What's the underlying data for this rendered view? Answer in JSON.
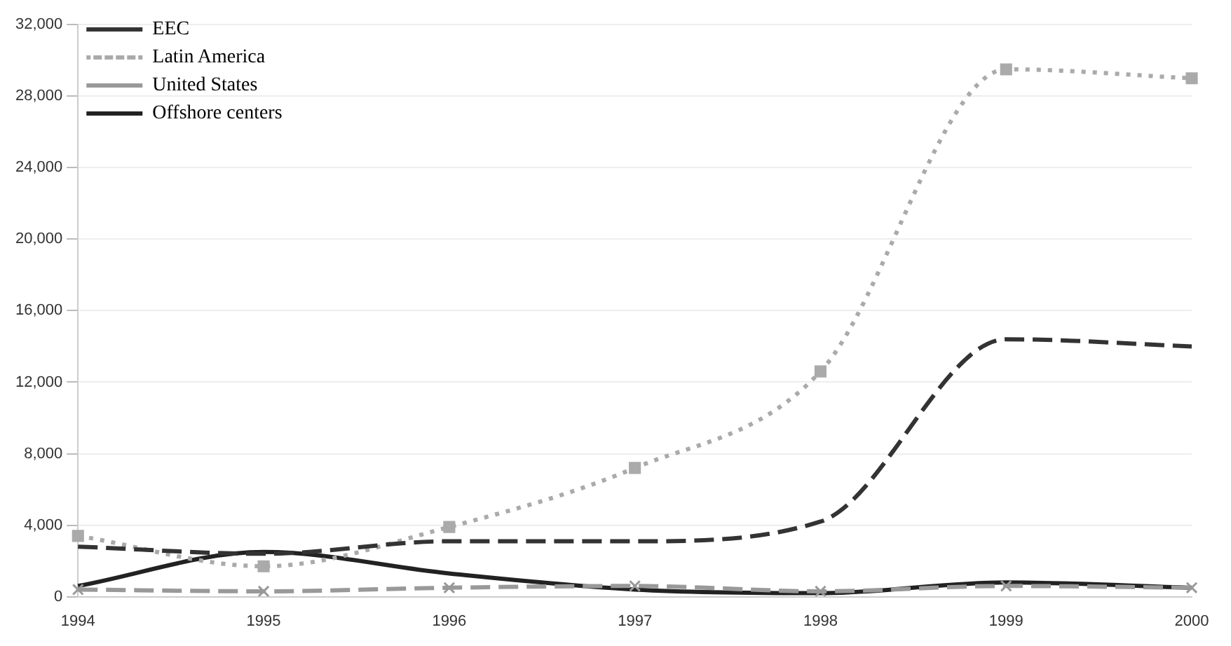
{
  "chart_data": {
    "type": "line",
    "categories": [
      "1994",
      "1995",
      "1996",
      "1997",
      "1998",
      "1999",
      "2000"
    ],
    "series": [
      {
        "name": "EEC",
        "color": "#333333",
        "line_style": "dashed",
        "marker": "none",
        "values": [
          2800,
          2400,
          3100,
          3100,
          4200,
          14400,
          14000
        ]
      },
      {
        "name": "Latin America",
        "color": "#aaaaaa",
        "line_style": "dotted",
        "marker": "square",
        "values": [
          3400,
          1700,
          3900,
          7200,
          12600,
          29500,
          29000
        ]
      },
      {
        "name": "United States",
        "color": "#999999",
        "line_style": "dashed",
        "marker": "cross",
        "values": [
          400,
          300,
          500,
          600,
          300,
          600,
          500
        ]
      },
      {
        "name": "Offshore centers",
        "color": "#222222",
        "line_style": "solid",
        "marker": "none",
        "values": [
          600,
          2500,
          1300,
          400,
          200,
          800,
          500
        ]
      }
    ],
    "ylim": [
      0,
      32000
    ],
    "yticks": [
      {
        "value": 0,
        "label": "0"
      },
      {
        "value": 4000,
        "label": "4,000"
      },
      {
        "value": 8000,
        "label": "8,000"
      },
      {
        "value": 12000,
        "label": "12,000"
      },
      {
        "value": 16000,
        "label": "16,000"
      },
      {
        "value": 20000,
        "label": "20,000"
      },
      {
        "value": 24000,
        "label": "24,000"
      },
      {
        "value": 28000,
        "label": "28,000"
      },
      {
        "value": 32000,
        "label": "32,000"
      }
    ],
    "grid": "y",
    "legend": "top left"
  }
}
